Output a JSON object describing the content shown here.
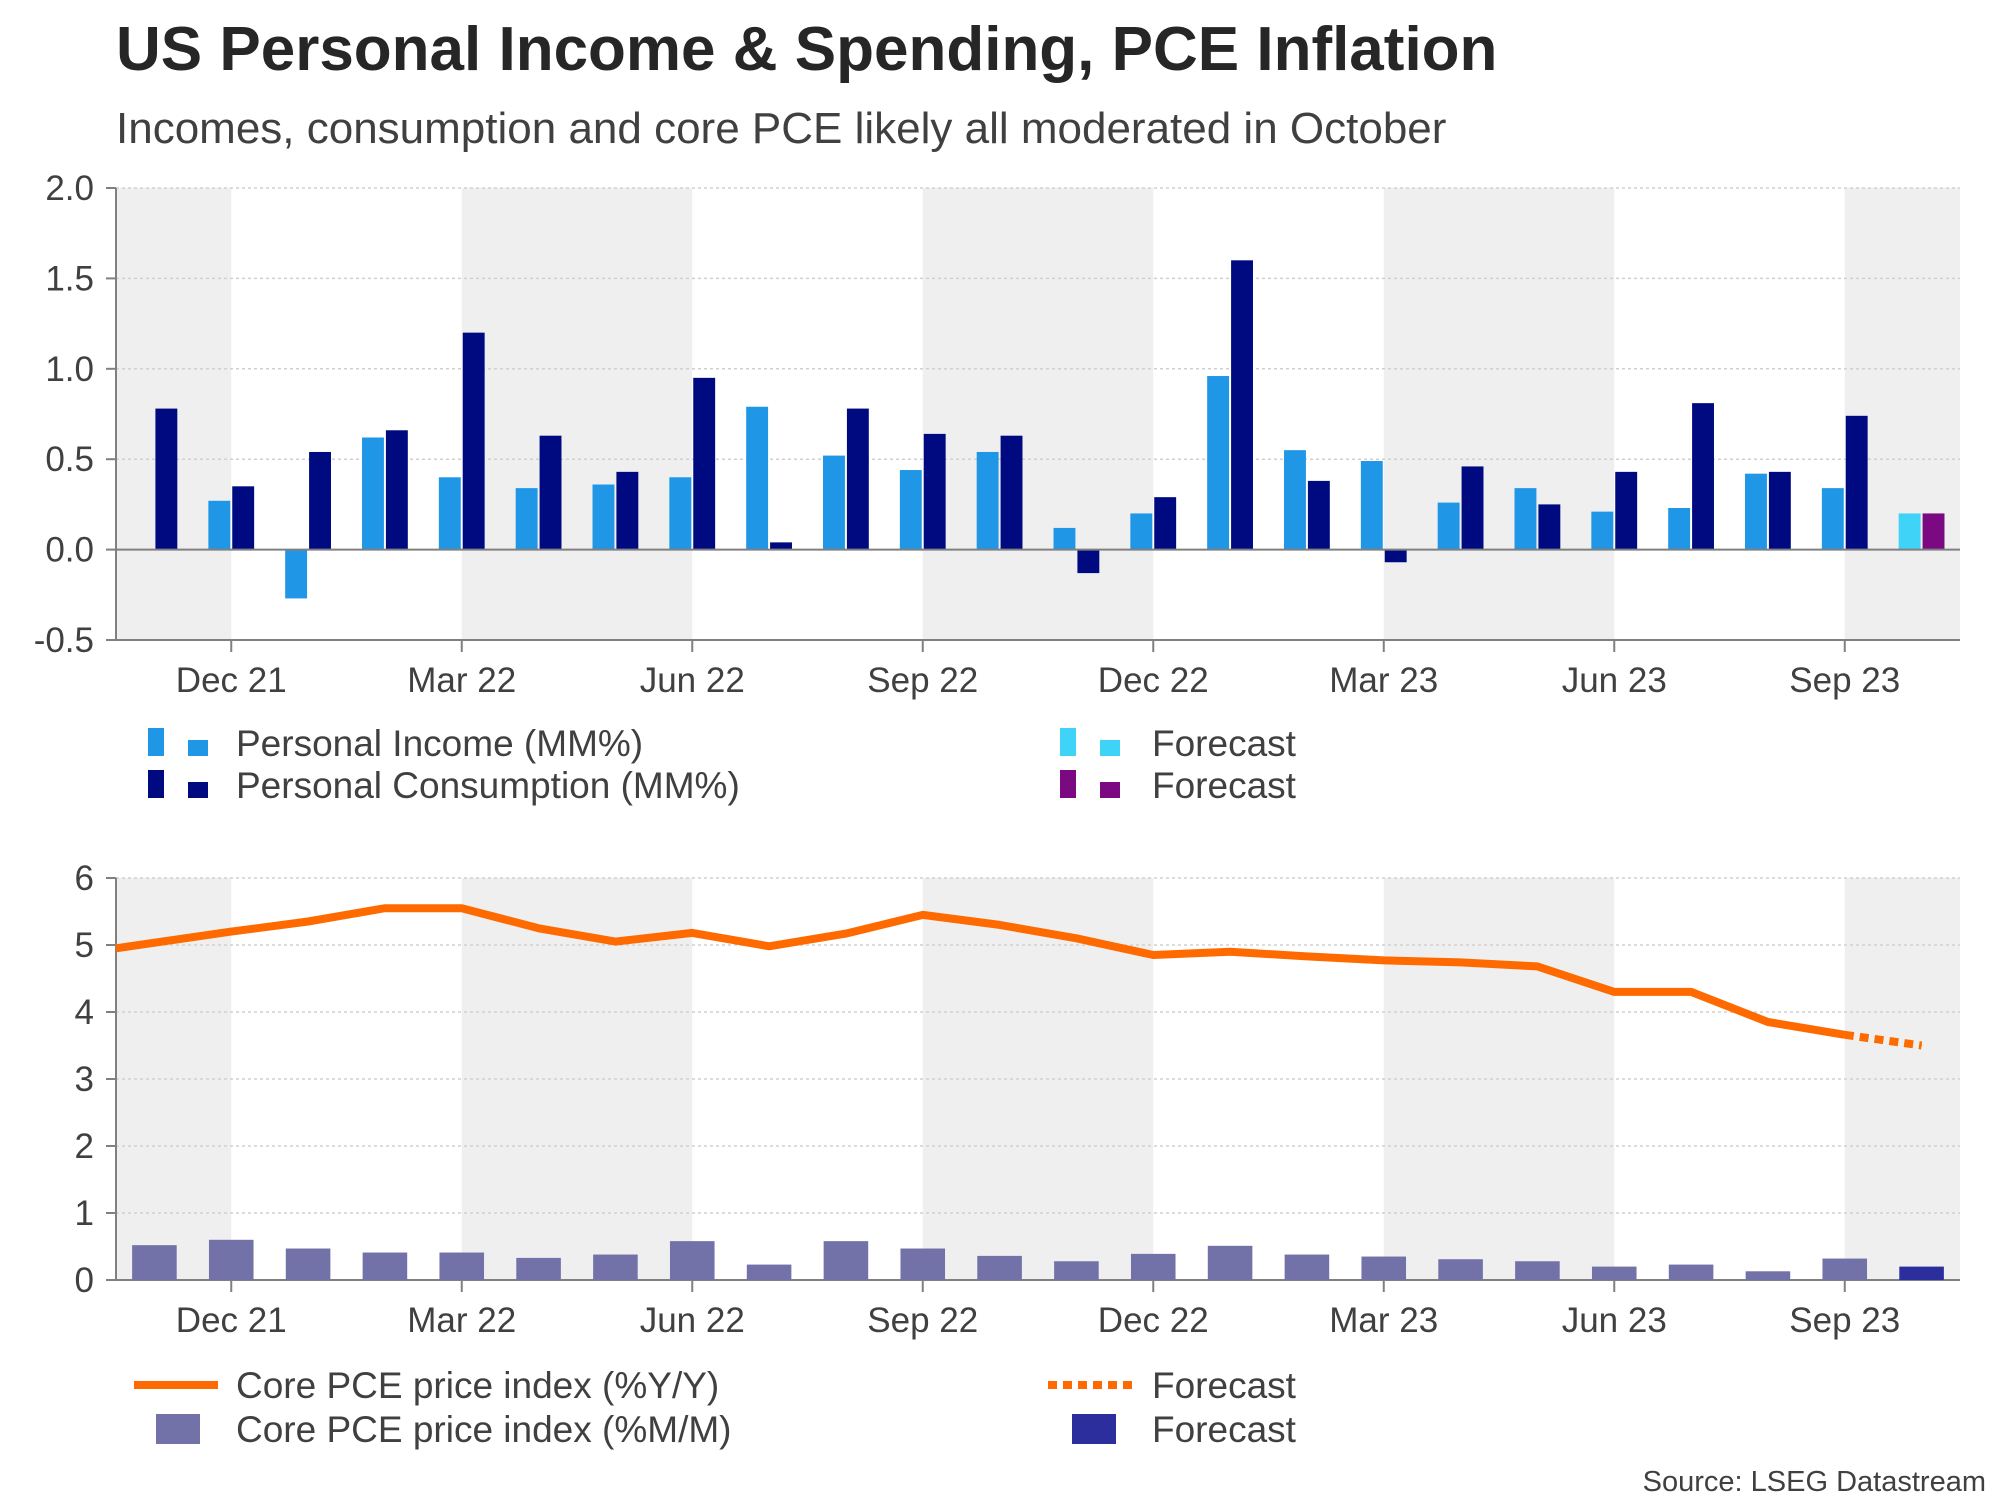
{
  "title": "US Personal Income & Spending, PCE Inflation",
  "subtitle": "Incomes, consumption and core PCE likely all moderated in October",
  "source": "Source: LSEG Datastream",
  "colors": {
    "income": "#1f96e6",
    "consumption": "#000a80",
    "income_forecast": "#3fd3f8",
    "consumption_forecast": "#7b0a82",
    "yoy_line": "#ff6a00",
    "mom_bar": "#7272a8",
    "mom_forecast": "#2b2e9c",
    "band": "#efefef"
  },
  "chart_data": [
    {
      "type": "bar",
      "x_tick_labels": [
        "Dec 21",
        "Mar 22",
        "Jun 22",
        "Sep 22",
        "Dec 22",
        "Mar 23",
        "Jun 23",
        "Sep 23"
      ],
      "categories": [
        "Nov 21",
        "Dec 21",
        "Jan 22",
        "Feb 22",
        "Mar 22",
        "Apr 22",
        "May 22",
        "Jun 22",
        "Jul 22",
        "Aug 22",
        "Sep 22",
        "Oct 22",
        "Nov 22",
        "Dec 22",
        "Jan 23",
        "Feb 23",
        "Mar 23",
        "Apr 23",
        "May 23",
        "Jun 23",
        "Jul 23",
        "Aug 23",
        "Sep 23",
        "Oct 23"
      ],
      "ylim": [
        -0.5,
        2.0
      ],
      "y_ticks": [
        "-0.5",
        "0.0",
        "0.5",
        "1.0",
        "1.5",
        "2.0"
      ],
      "series": [
        {
          "name": "Personal Income (MM%)",
          "values": [
            null,
            0.27,
            -0.27,
            0.62,
            0.4,
            0.34,
            0.36,
            0.4,
            0.79,
            0.52,
            0.44,
            0.54,
            0.12,
            0.2,
            0.96,
            0.55,
            0.49,
            0.26,
            0.34,
            0.21,
            0.23,
            0.42,
            0.34,
            null
          ]
        },
        {
          "name": "Personal Consumption (MM%)",
          "values": [
            0.78,
            0.35,
            0.54,
            0.66,
            1.2,
            0.63,
            0.43,
            0.95,
            0.04,
            0.78,
            0.64,
            0.63,
            -0.13,
            0.29,
            1.6,
            0.38,
            -0.07,
            0.46,
            0.25,
            0.43,
            0.81,
            0.43,
            0.74,
            null
          ]
        },
        {
          "name": "Forecast",
          "values": [
            null,
            null,
            null,
            null,
            null,
            null,
            null,
            null,
            null,
            null,
            null,
            null,
            null,
            null,
            null,
            null,
            null,
            null,
            null,
            null,
            null,
            null,
            null,
            0.2
          ]
        },
        {
          "name": "Forecast",
          "values": [
            null,
            null,
            null,
            null,
            null,
            null,
            null,
            null,
            null,
            null,
            null,
            null,
            null,
            null,
            null,
            null,
            null,
            null,
            null,
            null,
            null,
            null,
            null,
            0.2
          ]
        }
      ],
      "legend": [
        {
          "label": "Personal Income (MM%)",
          "color_key": "income"
        },
        {
          "label": "Personal Consumption (MM%)",
          "color_key": "consumption"
        },
        {
          "label": "Forecast",
          "color_key": "income_forecast"
        },
        {
          "label": "Forecast",
          "color_key": "consumption_forecast"
        }
      ],
      "grid": true
    },
    {
      "type": "line",
      "x_tick_labels": [
        "Dec 21",
        "Mar 22",
        "Jun 22",
        "Sep 22",
        "Dec 22",
        "Mar 23",
        "Jun 23",
        "Sep 23"
      ],
      "categories": [
        "Nov 21",
        "Dec 21",
        "Jan 22",
        "Feb 22",
        "Mar 22",
        "Apr 22",
        "May 22",
        "Jun 22",
        "Jul 22",
        "Aug 22",
        "Sep 22",
        "Oct 22",
        "Nov 22",
        "Dec 22",
        "Jan 23",
        "Feb 23",
        "Mar 23",
        "Apr 23",
        "May 23",
        "Jun 23",
        "Jul 23",
        "Aug 23",
        "Sep 23",
        "Oct 23"
      ],
      "ylim": [
        0,
        6
      ],
      "y_ticks": [
        "0",
        "1",
        "2",
        "3",
        "4",
        "5",
        "6"
      ],
      "series": [
        {
          "name": "Core PCE price index (%Y/Y)",
          "type": "line",
          "values": [
            4.95,
            5.2,
            5.35,
            5.55,
            5.55,
            5.25,
            5.05,
            5.18,
            4.98,
            5.17,
            5.45,
            5.3,
            5.1,
            4.85,
            4.9,
            4.83,
            4.77,
            4.74,
            4.68,
            4.3,
            4.3,
            3.85,
            3.66,
            null
          ]
        },
        {
          "name": "Forecast",
          "type": "line-dotted",
          "values": [
            null,
            null,
            null,
            null,
            null,
            null,
            null,
            null,
            null,
            null,
            null,
            null,
            null,
            null,
            null,
            null,
            null,
            null,
            null,
            null,
            null,
            null,
            3.66,
            3.5
          ]
        },
        {
          "name": "Core PCE price index (%M/M)",
          "type": "bar",
          "values": [
            0.52,
            0.6,
            0.47,
            0.41,
            0.41,
            0.33,
            0.38,
            0.58,
            0.23,
            0.58,
            0.47,
            0.36,
            0.28,
            0.39,
            0.51,
            0.38,
            0.35,
            0.31,
            0.28,
            0.2,
            0.23,
            0.13,
            0.32,
            null
          ]
        },
        {
          "name": "Forecast",
          "type": "bar",
          "values": [
            null,
            null,
            null,
            null,
            null,
            null,
            null,
            null,
            null,
            null,
            null,
            null,
            null,
            null,
            null,
            null,
            null,
            null,
            null,
            null,
            null,
            null,
            null,
            0.2
          ]
        }
      ],
      "legend": [
        {
          "label": "Core PCE price index (%Y/Y)",
          "color_key": "yoy_line"
        },
        {
          "label": "Core PCE price index (%M/M)",
          "color_key": "mom_bar"
        },
        {
          "label": "Forecast",
          "color_key": "yoy_line"
        },
        {
          "label": "Forecast",
          "color_key": "mom_forecast"
        }
      ],
      "grid": true
    }
  ]
}
